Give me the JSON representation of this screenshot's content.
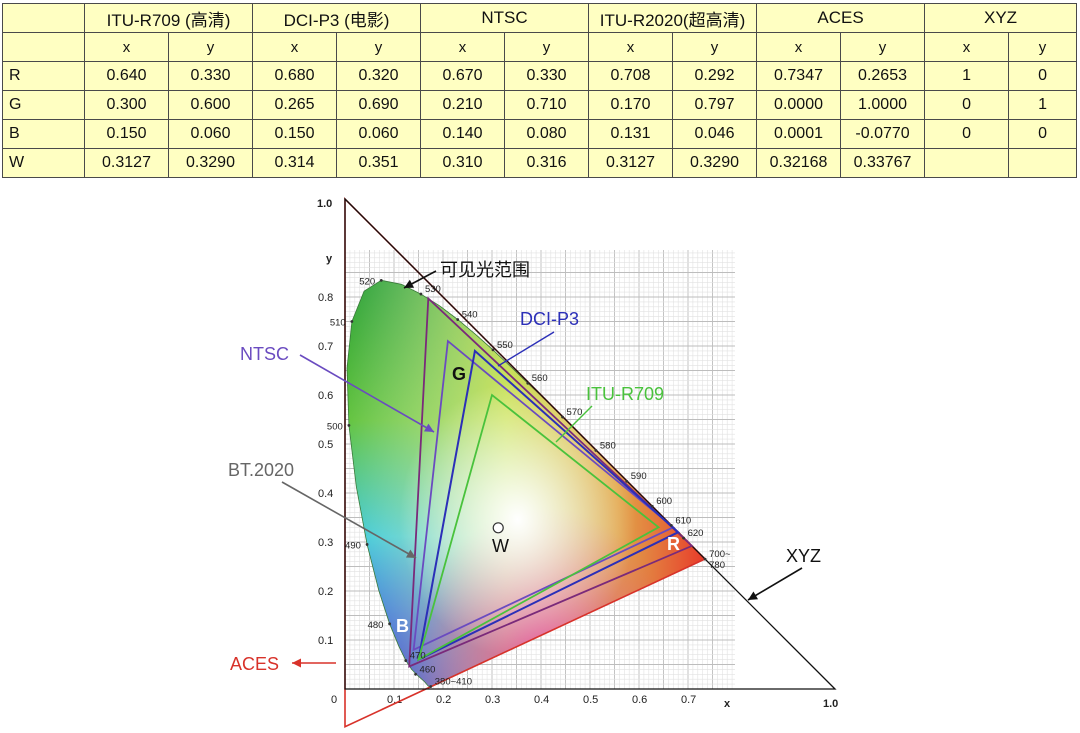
{
  "table": {
    "spaces": [
      "ITU-R709 (高清)",
      "DCI-P3 (电影)",
      "NTSC",
      "ITU-R2020(超高清)",
      "ACES",
      "XYZ"
    ],
    "axis_x": "x",
    "axis_y": "y",
    "rows": [
      {
        "label": "R",
        "values": [
          "0.640",
          "0.330",
          "0.680",
          "0.320",
          "0.670",
          "0.330",
          "0.708",
          "0.292",
          "0.7347",
          "0.2653",
          "1",
          "0"
        ]
      },
      {
        "label": "G",
        "values": [
          "0.300",
          "0.600",
          "0.265",
          "0.690",
          "0.210",
          "0.710",
          "0.170",
          "0.797",
          "0.0000",
          "1.0000",
          "0",
          "1"
        ]
      },
      {
        "label": "B",
        "values": [
          "0.150",
          "0.060",
          "0.150",
          "0.060",
          "0.140",
          "0.080",
          "0.131",
          "0.046",
          "0.0001",
          "-0.0770",
          "0",
          "0"
        ]
      },
      {
        "label": "W",
        "values": [
          "0.3127",
          "0.3290",
          "0.314",
          "0.351",
          "0.310",
          "0.316",
          "0.3127",
          "0.3290",
          "0.32168",
          "0.33767",
          "",
          ""
        ]
      }
    ]
  },
  "diagram": {
    "axis_x_label": "x",
    "axis_y_label": "y",
    "x_ticks": [
      "0",
      "0.1",
      "0.2",
      "0.3",
      "0.4",
      "0.5",
      "0.6",
      "0.7"
    ],
    "y_ticks": [
      "0.1",
      "0.2",
      "0.3",
      "0.4",
      "0.5",
      "0.6",
      "0.7",
      "0.8"
    ],
    "corner_top": "1.0",
    "corner_right": "1.0",
    "wavelengths": [
      {
        "label": "380~410",
        "x": 0.175,
        "y": 0.005
      },
      {
        "label": "460",
        "x": 0.144,
        "y": 0.03
      },
      {
        "label": "470",
        "x": 0.124,
        "y": 0.058
      },
      {
        "label": "480",
        "x": 0.091,
        "y": 0.133
      },
      {
        "label": "490",
        "x": 0.045,
        "y": 0.295
      },
      {
        "label": "500",
        "x": 0.008,
        "y": 0.538
      },
      {
        "label": "510",
        "x": 0.014,
        "y": 0.75
      },
      {
        "label": "520",
        "x": 0.074,
        "y": 0.834
      },
      {
        "label": "530",
        "x": 0.155,
        "y": 0.806
      },
      {
        "label": "540",
        "x": 0.23,
        "y": 0.754
      },
      {
        "label": "550",
        "x": 0.302,
        "y": 0.692
      },
      {
        "label": "560",
        "x": 0.373,
        "y": 0.624
      },
      {
        "label": "570",
        "x": 0.444,
        "y": 0.555
      },
      {
        "label": "580",
        "x": 0.512,
        "y": 0.487
      },
      {
        "label": "590",
        "x": 0.575,
        "y": 0.424
      },
      {
        "label": "600",
        "x": 0.627,
        "y": 0.373
      },
      {
        "label": "610",
        "x": 0.666,
        "y": 0.334
      },
      {
        "label": "620",
        "x": 0.691,
        "y": 0.308
      },
      {
        "label": "700~\n780",
        "x": 0.735,
        "y": 0.265
      }
    ],
    "vertex_labels": {
      "G": "G",
      "R": "R",
      "B": "B",
      "W": "W"
    },
    "callouts": {
      "visible": "可见光范围",
      "dcip3": "DCI-P3",
      "ntsc": "NTSC",
      "r709": "ITU-R709",
      "bt2020": "BT.2020",
      "aces": "ACES",
      "xyz": "XYZ"
    },
    "colors": {
      "aces": "#d8322a",
      "xyz": "#111111",
      "dcip3": "#2b2fb8",
      "ntsc": "#6a4bc0",
      "r709": "#49c23c",
      "bt2020": "#7a2a7a",
      "gray_callout": "#666666",
      "table_fill": "#ffffc2"
    }
  }
}
